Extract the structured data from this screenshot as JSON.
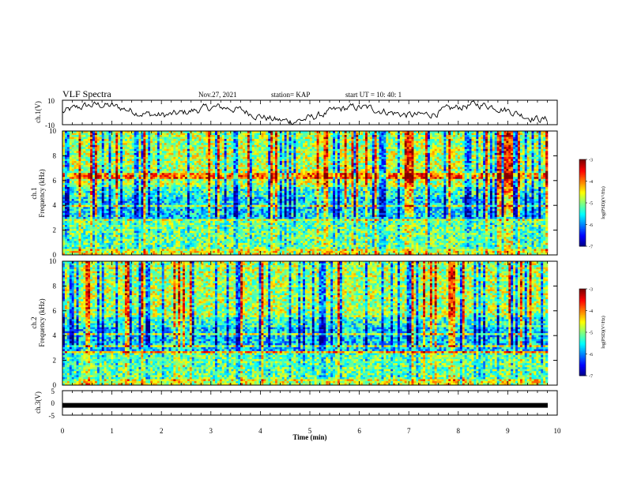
{
  "header": {
    "title": "VLF Spectra",
    "date": "Nov.27, 2021",
    "station": "station= KAP",
    "start": "start  UT =  10: 40: 1"
  },
  "chart_data": [
    {
      "type": "line",
      "ylabel": "ch.1(V)",
      "ylim": [
        -10,
        10
      ],
      "yticks": [
        "10",
        "-10"
      ],
      "xlim": [
        0,
        10
      ],
      "color": "#000000",
      "description_values": "noisy waveform near 0 V with a slow oscillation of about ±5 V"
    },
    {
      "type": "heatmap",
      "ylabel": "Frequency (kHz)",
      "channel_label": "ch.1",
      "ylim": [
        0,
        10
      ],
      "yticks": [
        "0",
        "2",
        "4",
        "6",
        "8",
        "10"
      ],
      "xlim": [
        0,
        10
      ],
      "colorbar": {
        "label": "log(PSD)(V²/Hz)",
        "range": [
          -7,
          -3
        ],
        "ticks": [
          "-3",
          "-4",
          "-5",
          "-6",
          "-7"
        ]
      }
    },
    {
      "type": "heatmap",
      "ylabel": "Frequency (kHz)",
      "channel_label": "ch.2",
      "ylim": [
        0,
        10
      ],
      "yticks": [
        "0",
        "2",
        "4",
        "6",
        "8",
        "10"
      ],
      "xlim": [
        0,
        10
      ],
      "colorbar": {
        "label": "log(PSD)(V²/Hz)",
        "range": [
          -7,
          -3
        ],
        "ticks": [
          "-3",
          "-4",
          "-5",
          "-6",
          "-7"
        ]
      }
    },
    {
      "type": "line",
      "ylabel": "ch.3(V)",
      "ylim": [
        -5,
        5
      ],
      "yticks": [
        "5",
        "0",
        "-5"
      ],
      "xlim": [
        0,
        10
      ],
      "values_approx": -1,
      "color": "#000000"
    }
  ],
  "xaxis": {
    "label": "Time (min)",
    "ticks": [
      "0",
      "1",
      "2",
      "3",
      "4",
      "5",
      "6",
      "7",
      "8",
      "9",
      "10"
    ]
  }
}
